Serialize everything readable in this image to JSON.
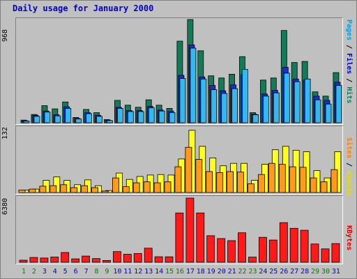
{
  "title": "Daily usage for January 2000",
  "legends": {
    "top": [
      {
        "text": "Pages",
        "color": "#00a0e0"
      },
      {
        "text": " / ",
        "color": "#000000"
      },
      {
        "text": "Files",
        "color": "#0000cc"
      },
      {
        "text": " / ",
        "color": "#000000"
      },
      {
        "text": "Hits",
        "color": "#008060"
      }
    ],
    "middle": [
      {
        "text": "Sites",
        "color": "#ff8000"
      },
      {
        "text": " / ",
        "color": "#000000"
      },
      {
        "text": "Visits",
        "color": "#e0e000"
      }
    ],
    "bottom": [
      {
        "text": "KBytes",
        "color": "#e00000"
      }
    ]
  },
  "colors": {
    "hits": "#157a5a",
    "files": "#1f2ad0",
    "pages": "#33b8ef",
    "visits": "#ffff22",
    "sites": "#ff9a1a",
    "kbytes": "#ff1a1a",
    "weekend": "#008000",
    "weekday": "#0000cc"
  },
  "chart_data": [
    {
      "type": "bar",
      "ymax_label": "968",
      "ylim": [
        0,
        968
      ],
      "categories": [
        "1",
        "2",
        "3",
        "4",
        "5",
        "6",
        "7",
        "8",
        "9",
        "10",
        "11",
        "12",
        "13",
        "14",
        "15",
        "16",
        "17",
        "18",
        "19",
        "20",
        "21",
        "22",
        "23",
        "24",
        "25",
        "26",
        "27",
        "28",
        "29",
        "30",
        "31"
      ],
      "weekend_days": [
        1,
        2,
        8,
        9,
        15,
        16,
        22,
        23,
        29,
        30
      ],
      "series": [
        {
          "name": "Hits",
          "values": [
            25,
            78,
            160,
            130,
            195,
            50,
            125,
            95,
            30,
            210,
            165,
            145,
            215,
            165,
            135,
            765,
            968,
            675,
            440,
            420,
            455,
            620,
            95,
            400,
            420,
            865,
            565,
            575,
            290,
            250,
            470
          ]
        },
        {
          "name": "Files",
          "values": [
            18,
            70,
            110,
            75,
            150,
            40,
            95,
            70,
            22,
            145,
            115,
            115,
            155,
            120,
            110,
            445,
            730,
            430,
            350,
            300,
            355,
            450,
            80,
            270,
            305,
            520,
            410,
            400,
            250,
            210,
            380
          ]
        },
        {
          "name": "Pages",
          "values": [
            15,
            60,
            100,
            65,
            135,
            35,
            85,
            60,
            20,
            135,
            105,
            105,
            140,
            110,
            95,
            415,
            700,
            410,
            310,
            275,
            320,
            500,
            75,
            250,
            280,
            465,
            385,
            410,
            215,
            175,
            350
          ]
        }
      ]
    },
    {
      "type": "bar",
      "ymax_label": "132",
      "ylim": [
        0,
        132
      ],
      "categories": [
        "1",
        "2",
        "3",
        "4",
        "5",
        "6",
        "7",
        "8",
        "9",
        "10",
        "11",
        "12",
        "13",
        "14",
        "15",
        "16",
        "17",
        "18",
        "19",
        "20",
        "21",
        "22",
        "23",
        "24",
        "25",
        "26",
        "27",
        "28",
        "29",
        "30",
        "31"
      ],
      "series": [
        {
          "name": "Visits",
          "values": [
            5,
            7,
            25,
            32,
            25,
            16,
            26,
            14,
            4,
            40,
            27,
            33,
            36,
            37,
            36,
            69,
            128,
            95,
            71,
            55,
            60,
            60,
            25,
            58,
            88,
            95,
            87,
            84,
            45,
            30,
            84
          ]
        },
        {
          "name": "Sites",
          "values": [
            5,
            7,
            13,
            14,
            16,
            10,
            14,
            10,
            3,
            30,
            12,
            20,
            22,
            20,
            22,
            53,
            93,
            68,
            43,
            41,
            43,
            42,
            18,
            37,
            60,
            58,
            53,
            52,
            30,
            22,
            47
          ]
        }
      ]
    },
    {
      "type": "bar",
      "ymax_label": "6380",
      "ylim": [
        0,
        6380
      ],
      "categories": [
        "1",
        "2",
        "3",
        "4",
        "5",
        "6",
        "7",
        "8",
        "9",
        "10",
        "11",
        "12",
        "13",
        "14",
        "15",
        "16",
        "17",
        "18",
        "19",
        "20",
        "21",
        "22",
        "23",
        "24",
        "25",
        "26",
        "27",
        "28",
        "29",
        "30",
        "31"
      ],
      "series": [
        {
          "name": "KBytes",
          "values": [
            210,
            480,
            420,
            520,
            970,
            340,
            620,
            370,
            180,
            1060,
            800,
            870,
            1400,
            550,
            540,
            4900,
            6380,
            4900,
            2640,
            2360,
            2150,
            2930,
            510,
            2480,
            2210,
            3940,
            3380,
            3180,
            1820,
            1330,
            1860
          ]
        }
      ]
    }
  ]
}
